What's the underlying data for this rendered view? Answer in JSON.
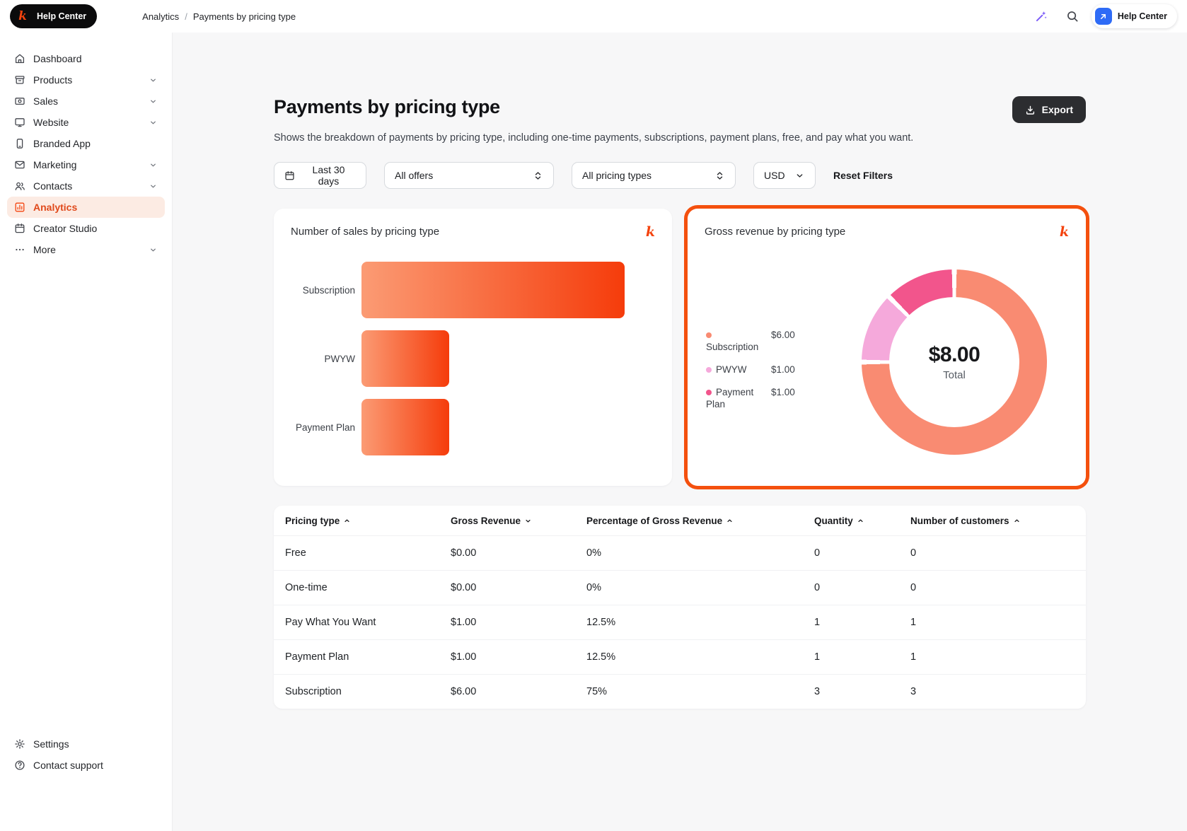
{
  "colors": {
    "brand": "#f4430e",
    "highlight": "#f4500e",
    "active_nav_bg": "#fcebe3",
    "active_nav_text": "#e0491b"
  },
  "brand": {
    "logo_letter": "k"
  },
  "topbar": {
    "badge": {
      "label": "Help Center"
    },
    "breadcrumb": {
      "separator": "/",
      "items": [
        "Analytics",
        "Payments by pricing type"
      ]
    },
    "help_button": {
      "label": "Help Center"
    }
  },
  "sidebar": {
    "items": [
      {
        "label": "Dashboard",
        "icon": "home-icon",
        "chevron": false,
        "active": false
      },
      {
        "label": "Products",
        "icon": "products-icon",
        "chevron": true,
        "active": false
      },
      {
        "label": "Sales",
        "icon": "sales-icon",
        "chevron": true,
        "active": false
      },
      {
        "label": "Website",
        "icon": "website-icon",
        "chevron": true,
        "active": false
      },
      {
        "label": "Branded App",
        "icon": "branded-app-icon",
        "chevron": false,
        "active": false
      },
      {
        "label": "Marketing",
        "icon": "marketing-icon",
        "chevron": true,
        "active": false
      },
      {
        "label": "Contacts",
        "icon": "contacts-icon",
        "chevron": true,
        "active": false
      },
      {
        "label": "Analytics",
        "icon": "analytics-icon",
        "chevron": false,
        "active": true
      },
      {
        "label": "Creator Studio",
        "icon": "creator-studio-icon",
        "chevron": false,
        "active": false
      },
      {
        "label": "More",
        "icon": "more-icon",
        "chevron": true,
        "active": false
      }
    ],
    "footer_items": [
      {
        "label": "Settings",
        "icon": "gear-icon",
        "chevron": false,
        "active": false
      },
      {
        "label": "Contact support",
        "icon": "help-circle-icon",
        "chevron": false,
        "active": false
      }
    ]
  },
  "page": {
    "title": "Payments by pricing type",
    "description": "Shows the breakdown of payments by pricing type, including one-time payments, subscriptions, payment plans, free, and pay what you want.",
    "export_label": "Export"
  },
  "filters": {
    "date_range": "Last 30 days",
    "offers": "All offers",
    "pricing_types": "All pricing types",
    "currency": "USD",
    "reset_label": "Reset Filters"
  },
  "chart_data": [
    {
      "type": "bar",
      "title": "Number of sales by pricing type",
      "orientation": "horizontal",
      "categories": [
        "Subscription",
        "PWYW",
        "Payment Plan"
      ],
      "values": [
        3,
        1,
        1
      ],
      "xlim": [
        0,
        3
      ],
      "bar_gradient": [
        "#fb9b74",
        "#f53c0b"
      ]
    },
    {
      "type": "pie",
      "title": "Gross revenue by pricing type",
      "donut": true,
      "center_value": "$8.00",
      "center_label": "Total",
      "legend_position": "left",
      "slices": [
        {
          "label": "Subscription",
          "value": 6,
          "display_value": "$6.00",
          "percent": 75,
          "color": "#f98b72"
        },
        {
          "label": "PWYW",
          "value": 1,
          "display_value": "$1.00",
          "percent": 12.5,
          "color": "#f5a9db"
        },
        {
          "label": "Payment Plan",
          "value": 1,
          "display_value": "$1.00",
          "percent": 12.5,
          "color": "#f2558c"
        }
      ]
    }
  ],
  "table": {
    "columns": [
      {
        "label": "Pricing type",
        "sort": "asc"
      },
      {
        "label": "Gross Revenue",
        "sort": "desc"
      },
      {
        "label": "Percentage of Gross Revenue",
        "sort": "asc"
      },
      {
        "label": "Quantity",
        "sort": "asc"
      },
      {
        "label": "Number of customers",
        "sort": "asc"
      }
    ],
    "rows": [
      [
        "Free",
        "$0.00",
        "0%",
        "0",
        "0"
      ],
      [
        "One-time",
        "$0.00",
        "0%",
        "0",
        "0"
      ],
      [
        "Pay What You Want",
        "$1.00",
        "12.5%",
        "1",
        "1"
      ],
      [
        "Payment Plan",
        "$1.00",
        "12.5%",
        "1",
        "1"
      ],
      [
        "Subscription",
        "$6.00",
        "75%",
        "3",
        "3"
      ]
    ]
  }
}
